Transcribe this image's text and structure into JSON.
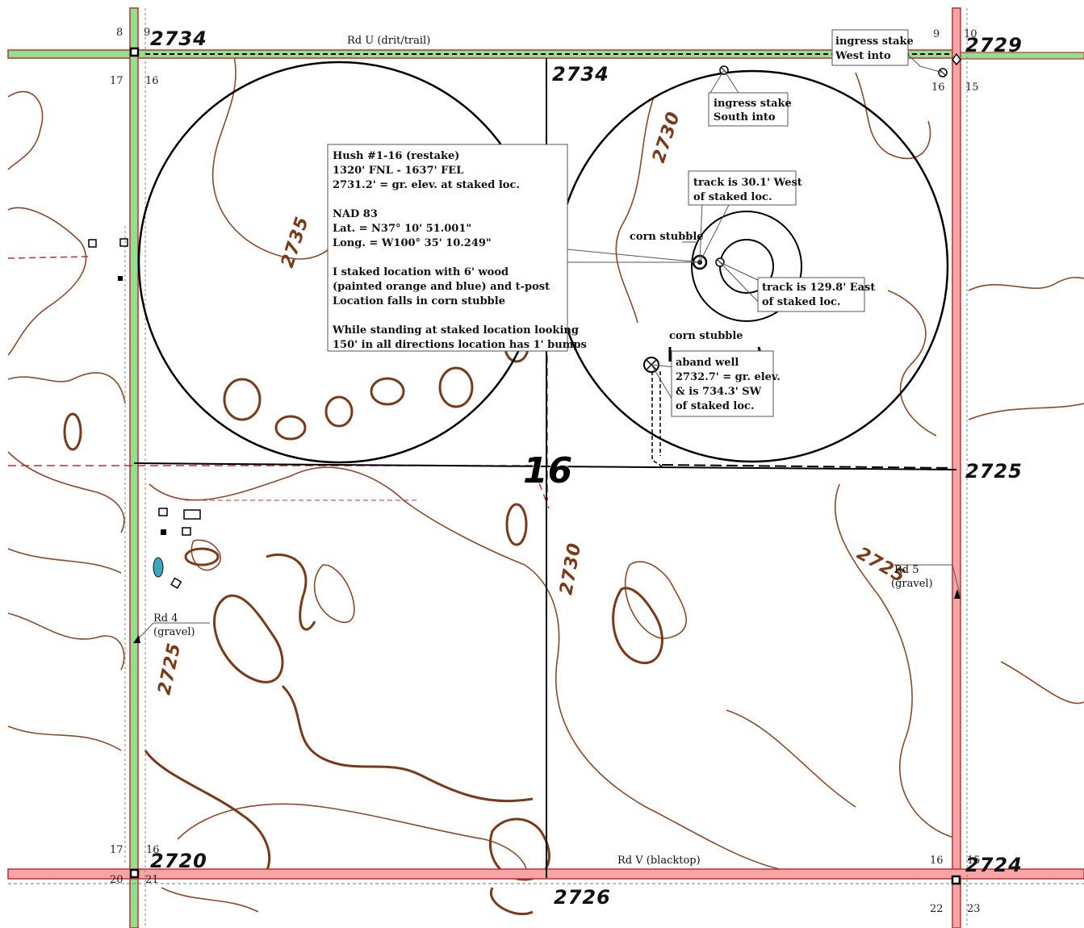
{
  "section_label": "16",
  "elevations": {
    "nw_corner": "2734",
    "north_mid": "2734",
    "ne_corner": "2729",
    "east_mid": "2725",
    "sw_corner": "2720",
    "south_mid": "2726",
    "se_corner": "2724"
  },
  "contour_labels": [
    "2735",
    "2730",
    "2730",
    "2725",
    "2725"
  ],
  "section_numbers": {
    "nw": [
      "8",
      "9",
      "17",
      "16"
    ],
    "ne": [
      "9",
      "10",
      "16",
      "15"
    ],
    "sw": [
      "17",
      "16",
      "20",
      "21"
    ],
    "se": [
      "16",
      "15",
      "22",
      "23"
    ]
  },
  "roads": {
    "north": "Rd U (drit/trail)",
    "south": "Rd V (blacktop)",
    "west": [
      "Rd 4",
      "(gravel)"
    ],
    "east": [
      "Rd 5",
      "(gravel)"
    ]
  },
  "callouts": {
    "location_info": [
      "Hush #1-16 (restake)",
      "1320' FNL - 1637' FEL",
      "2731.2' = gr. elev. at staked loc.",
      "",
      "NAD 83",
      "Lat. = N37° 10' 51.001\"",
      "Long. = W100° 35' 10.249\"",
      "",
      "I staked location with 6' wood",
      "(painted orange and blue) and t-post",
      "Location falls in corn stubble",
      "",
      "While standing at staked location looking",
      "150' in all directions location has 1' bumps"
    ],
    "ingress_west": [
      "ingress stake",
      "West into"
    ],
    "ingress_south": [
      "ingress stake",
      "South into"
    ],
    "track_west": [
      "track is 30.1' West",
      "of staked loc."
    ],
    "track_east": [
      "track is 129.8' East",
      "of staked loc."
    ],
    "aband_well": [
      "aband well",
      "2732.7' = gr. elev.",
      "& is 734.3' SW",
      "of staked loc."
    ],
    "corn_stubble_1": "corn stubble",
    "corn_stubble_2": "corn stubble"
  },
  "colors": {
    "gravel_road": "#90e090",
    "paved_road": "#f5a5a5",
    "road_edge": "#c03030",
    "contour": "#8a4a2a"
  }
}
